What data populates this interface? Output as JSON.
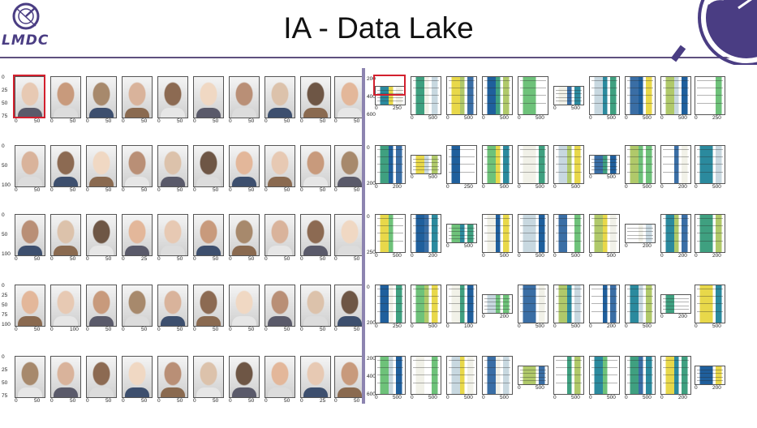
{
  "header": {
    "title": "IA - Data Lake",
    "logo_text": "LMDC",
    "accent_color": "#4a3d83",
    "rule_color": "#5e507e"
  },
  "faces_panel": {
    "rows": [
      {
        "y_ticks": [
          "0",
          "25",
          "50",
          "75"
        ],
        "x_ticks": [
          "0",
          "50"
        ],
        "cells_x_ticks": [
          [
            "0",
            "50"
          ],
          [
            "0",
            "50"
          ],
          [
            "0",
            "50"
          ],
          [
            "0",
            "50"
          ],
          [
            "0",
            "50"
          ],
          [
            "0",
            "50"
          ],
          [
            "0",
            "50"
          ],
          [
            "0",
            "50"
          ],
          [
            "0",
            "50"
          ],
          [
            "0",
            "50"
          ]
        ]
      },
      {
        "y_ticks": [
          "0",
          "50",
          "100"
        ],
        "x_ticks": [
          "0",
          "50"
        ],
        "cells_x_ticks": [
          [
            "0",
            "50"
          ],
          [
            "0",
            "50"
          ],
          [
            "0",
            "50"
          ],
          [
            "0",
            "50"
          ],
          [
            "0",
            "50"
          ],
          [
            "0",
            "50"
          ],
          [
            "0",
            "50"
          ],
          [
            "0",
            "50"
          ],
          [
            "0",
            "50"
          ],
          [
            "0",
            "50"
          ]
        ]
      },
      {
        "y_ticks": [
          "0",
          "50",
          "100"
        ],
        "x_ticks": [
          "0",
          "50"
        ],
        "cells_x_ticks": [
          [
            "0",
            "50"
          ],
          [
            "0",
            "50"
          ],
          [
            "0",
            "50"
          ],
          [
            "0",
            "25"
          ],
          [
            "0",
            "50"
          ],
          [
            "0",
            "50"
          ],
          [
            "0",
            "50"
          ],
          [
            "0",
            "50"
          ],
          [
            "0",
            "50"
          ],
          [
            "0",
            "50"
          ]
        ]
      },
      {
        "y_ticks": [
          "0",
          "25",
          "50",
          "75",
          "100"
        ],
        "x_ticks": [
          "0",
          "50"
        ],
        "cells_x_ticks": [
          [
            "0",
            "50"
          ],
          [
            "0",
            "100"
          ],
          [
            "0",
            "50"
          ],
          [
            "0",
            "50"
          ],
          [
            "0",
            "50"
          ],
          [
            "0",
            "50"
          ],
          [
            "0",
            "50"
          ],
          [
            "0",
            "50"
          ],
          [
            "0",
            "50"
          ],
          [
            "0",
            "50"
          ]
        ]
      },
      {
        "y_ticks": [
          "0",
          "25",
          "50",
          "75"
        ],
        "x_ticks": [
          "0",
          "50"
        ],
        "cells_x_ticks": [
          [
            "0",
            "50"
          ],
          [
            "0",
            "50"
          ],
          [
            "0",
            "50"
          ],
          [
            "0",
            "50"
          ],
          [
            "0",
            "50"
          ],
          [
            "0",
            "50"
          ],
          [
            "0",
            "50"
          ],
          [
            "0",
            "50"
          ],
          [
            "0",
            "25"
          ],
          [
            "0",
            "50"
          ]
        ]
      }
    ],
    "colors": [
      "#e7c9b3",
      "#c89a7c",
      "#a7896c",
      "#d9b39b",
      "#8c6a52",
      "#f0d8c3",
      "#b98f76",
      "#dcc2ab",
      "#6e5645",
      "#e3b79a"
    ]
  },
  "docs_panel": {
    "rows": [
      {
        "y_ticks": [
          "200",
          "400",
          "600"
        ],
        "cells_x_ticks": [
          [
            "0",
            "250"
          ],
          [
            "0",
            "500"
          ],
          [
            "0",
            "500"
          ],
          [
            "0",
            "500"
          ],
          [
            "0",
            "500"
          ],
          [
            "0",
            "500"
          ],
          [
            "0",
            "500"
          ],
          [
            "0",
            "500"
          ],
          [
            "0",
            "500"
          ],
          [
            "0",
            "250"
          ]
        ]
      },
      {
        "y_ticks": [
          "0",
          "200"
        ],
        "cells_x_ticks": [
          [
            "0",
            "200"
          ],
          [
            "0",
            "500"
          ],
          [
            "0",
            "250"
          ],
          [
            "0",
            "500"
          ],
          [
            "0",
            "500"
          ],
          [
            "0",
            "500"
          ],
          [
            "0",
            "500"
          ],
          [
            "0",
            "500"
          ],
          [
            "0",
            "200"
          ],
          [
            "0",
            "500"
          ]
        ]
      },
      {
        "y_ticks": [
          "0",
          "250"
        ],
        "cells_x_ticks": [
          [
            "0",
            "500"
          ],
          [
            "0",
            "200"
          ],
          [
            "0",
            "500"
          ],
          [
            "0",
            "500"
          ],
          [
            "0",
            "500"
          ],
          [
            "0",
            "500"
          ],
          [
            "0",
            "500"
          ],
          [
            "0",
            "200"
          ],
          [
            "0",
            "200"
          ],
          [
            "0",
            "200"
          ]
        ]
      },
      {
        "y_ticks": [
          "0",
          "200"
        ],
        "cells_x_ticks": [
          [
            "0",
            "250"
          ],
          [
            "0",
            "500"
          ],
          [
            "0",
            "100"
          ],
          [
            "0",
            "200"
          ],
          [
            "0",
            "500"
          ],
          [
            "0",
            "500"
          ],
          [
            "0",
            "200"
          ],
          [
            "0",
            "500"
          ],
          [
            "0",
            "200"
          ],
          [
            "0",
            "500"
          ]
        ]
      },
      {
        "y_ticks": [
          "200",
          "400",
          "600"
        ],
        "cells_x_ticks": [
          [
            "0",
            "500"
          ],
          [
            "0",
            "500"
          ],
          [
            "0",
            "500"
          ],
          [
            "0",
            "500"
          ],
          [
            "0",
            "500"
          ],
          [
            "0",
            "500"
          ],
          [
            "0",
            "500"
          ],
          [
            "0",
            "500"
          ],
          [
            "0",
            "200"
          ],
          [
            "0",
            "200"
          ]
        ]
      }
    ],
    "colors": [
      "#2b8a9e",
      "#3fa080",
      "#e8d84a",
      "#1f5f9c",
      "#6ec27a",
      "#f1f1e8",
      "#c8d8e0",
      "#3a6ea5",
      "#b0c96a",
      "#ffffff"
    ]
  }
}
